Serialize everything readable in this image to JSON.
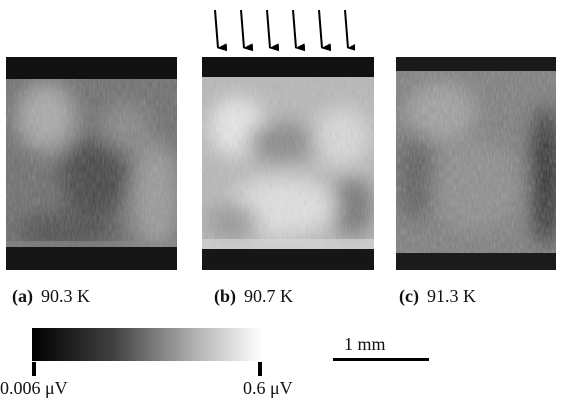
{
  "panels": [
    {
      "letter": "(a)",
      "temperature": "90.3 K"
    },
    {
      "letter": "(b)",
      "temperature": "90.7 K"
    },
    {
      "letter": "(c)",
      "temperature": "91.3 K"
    }
  ],
  "arrow_count": 6,
  "colorbar": {
    "min_label": "0.006 μV",
    "max_label": "0.6 μV",
    "colors": [
      "#000000",
      "#404040",
      "#b5b5b5",
      "#ffffff"
    ]
  },
  "scale_bar": {
    "label": "1 mm"
  }
}
